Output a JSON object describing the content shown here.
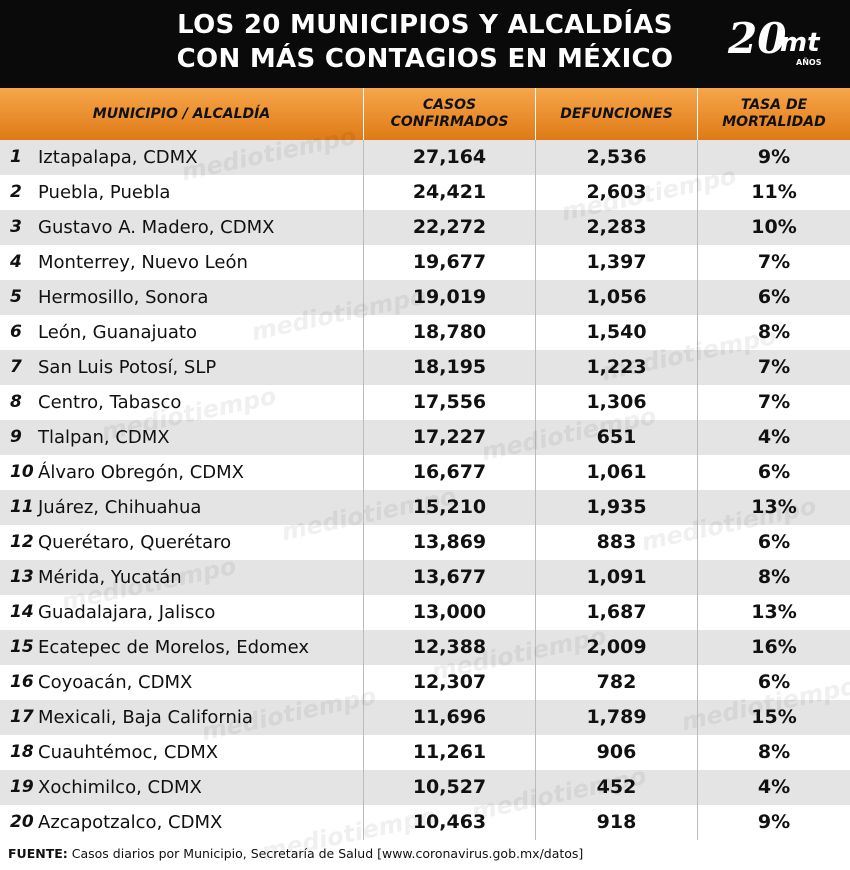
{
  "header": {
    "title": [
      "LOS 20 MUNICIPIOS Y ALCALDÍAS",
      "CON MÁS CONTAGIOS EN MÉXICO"
    ],
    "logo": {
      "number": "20",
      "brand": "mt",
      "sub": "AÑOS"
    }
  },
  "table": {
    "columns": [
      "MUNICIPIO / ALCALDÍA",
      "CASOS\nCONFIRMADOS",
      "DEFUNCIONES",
      "TASA DE\nMORTALIDAD"
    ],
    "rows": [
      [
        "1",
        "Iztapalapa, CDMX",
        "27,164",
        "2,536",
        "9%"
      ],
      [
        "2",
        "Puebla, Puebla",
        "24,421",
        "2,603",
        "11%"
      ],
      [
        "3",
        "Gustavo A. Madero, CDMX",
        "22,272",
        "2,283",
        "10%"
      ],
      [
        "4",
        "Monterrey, Nuevo León",
        "19,677",
        "1,397",
        "7%"
      ],
      [
        "5",
        "Hermosillo, Sonora",
        "19,019",
        "1,056",
        "6%"
      ],
      [
        "6",
        "León, Guanajuato",
        "18,780",
        "1,540",
        "8%"
      ],
      [
        "7",
        "San Luis Potosí, SLP",
        "18,195",
        "1,223",
        "7%"
      ],
      [
        "8",
        "Centro, Tabasco",
        "17,556",
        "1,306",
        "7%"
      ],
      [
        "9",
        "Tlalpan, CDMX",
        "17,227",
        "651",
        "4%"
      ],
      [
        "10",
        "Álvaro Obregón, CDMX",
        "16,677",
        "1,061",
        "6%"
      ],
      [
        "11",
        "Juárez, Chihuahua",
        "15,210",
        "1,935",
        "13%"
      ],
      [
        "12",
        "Querétaro, Querétaro",
        "13,869",
        "883",
        "6%"
      ],
      [
        "13",
        "Mérida, Yucatán",
        "13,677",
        "1,091",
        "8%"
      ],
      [
        "14",
        "Guadalajara, Jalisco",
        "13,000",
        "1,687",
        "13%"
      ],
      [
        "15",
        "Ecatepec de Morelos, Edomex",
        "12,388",
        "2,009",
        "16%"
      ],
      [
        "16",
        "Coyoacán, CDMX",
        "12,307",
        "782",
        "6%"
      ],
      [
        "17",
        "Mexicali, Baja California",
        "11,696",
        "1,789",
        "15%"
      ],
      [
        "18",
        "Cuauhtémoc, CDMX",
        "11,261",
        "906",
        "8%"
      ],
      [
        "19",
        "Xochimilco, CDMX",
        "10,527",
        "452",
        "4%"
      ],
      [
        "20",
        "Azcapotzalco, CDMX",
        "10,463",
        "918",
        "9%"
      ]
    ]
  },
  "watermark": "mediotiempo",
  "footer": {
    "label": "FUENTE:",
    "text": "Casos diarios por Municipio, Secretaría de Salud [www.coronavirus.gob.mx/datos]"
  }
}
